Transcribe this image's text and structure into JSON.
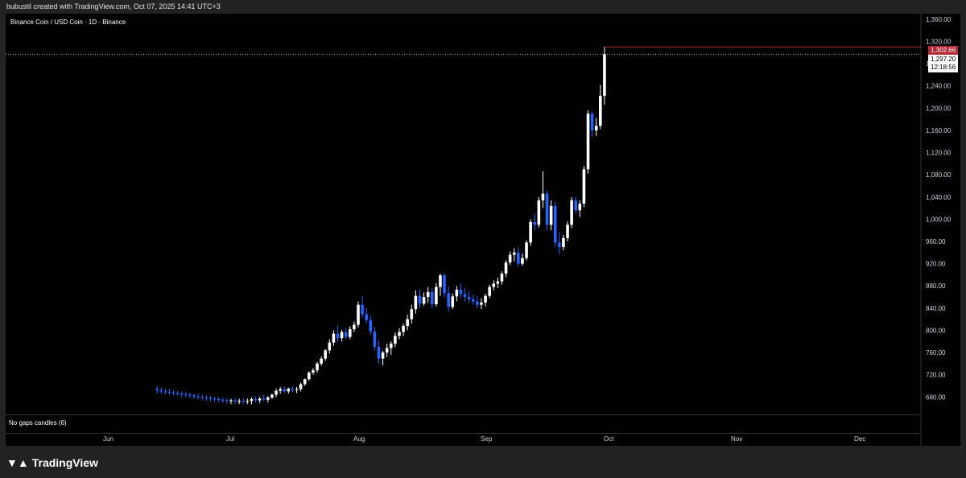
{
  "header": {
    "created_by": "bubustil created with TradingView.com, Oct 07, 2025 14:41 UTC+3"
  },
  "symbol": {
    "title": "Binance Coin / USD Coin · 1D · Binance"
  },
  "indicator": {
    "label": "No gaps candles (6)"
  },
  "price_tags": {
    "high": "1,302.66",
    "last": "1,297.20",
    "countdown": "12:18:56"
  },
  "footer": {
    "brand": "TradingView"
  },
  "colors": {
    "up": "#ffffff",
    "down": "#2962ff",
    "background": "#000000",
    "high_line": "#b22833"
  },
  "chart_data": {
    "type": "candlestick",
    "title": "Binance Coin / USD Coin · 1D · Binance",
    "ylim": [
      650,
      1370
    ],
    "y_ticks": [
      680,
      720,
      760,
      800,
      840,
      880,
      920,
      960,
      1000,
      1040,
      1080,
      1120,
      1160,
      1200,
      1240,
      1280,
      1320,
      1360
    ],
    "y_tick_labels": [
      "680.00",
      "720.00",
      "760.00",
      "800.00",
      "840.00",
      "880.00",
      "920.00",
      "960.00",
      "1,000.00",
      "1,040.00",
      "1,080.00",
      "1,120.00",
      "1,160.00",
      "1,200.00",
      "1,240.00",
      "1,280.00",
      "1,320.00",
      "1,360.00"
    ],
    "x_months": [
      "Jun",
      "Jul",
      "Aug",
      "Sep",
      "Oct",
      "Nov",
      "Dec"
    ],
    "x_month_days": [
      31,
      61,
      92,
      123,
      153,
      184,
      214
    ],
    "candles": [
      {
        "d": 43,
        "o": 694,
        "h": 700,
        "l": 686,
        "c": 692
      },
      {
        "d": 44,
        "o": 692,
        "h": 697,
        "l": 686,
        "c": 690
      },
      {
        "d": 45,
        "o": 690,
        "h": 695,
        "l": 685,
        "c": 689
      },
      {
        "d": 46,
        "o": 689,
        "h": 694,
        "l": 684,
        "c": 688
      },
      {
        "d": 47,
        "o": 688,
        "h": 692,
        "l": 683,
        "c": 687
      },
      {
        "d": 48,
        "o": 687,
        "h": 691,
        "l": 682,
        "c": 686
      },
      {
        "d": 49,
        "o": 686,
        "h": 690,
        "l": 680,
        "c": 685
      },
      {
        "d": 50,
        "o": 685,
        "h": 689,
        "l": 679,
        "c": 684
      },
      {
        "d": 51,
        "o": 684,
        "h": 688,
        "l": 678,
        "c": 683
      },
      {
        "d": 52,
        "o": 683,
        "h": 686,
        "l": 676,
        "c": 681
      },
      {
        "d": 53,
        "o": 681,
        "h": 685,
        "l": 675,
        "c": 680
      },
      {
        "d": 54,
        "o": 680,
        "h": 684,
        "l": 674,
        "c": 679
      },
      {
        "d": 55,
        "o": 679,
        "h": 683,
        "l": 673,
        "c": 678
      },
      {
        "d": 56,
        "o": 678,
        "h": 682,
        "l": 672,
        "c": 677
      },
      {
        "d": 57,
        "o": 677,
        "h": 680,
        "l": 671,
        "c": 676
      },
      {
        "d": 58,
        "o": 676,
        "h": 680,
        "l": 670,
        "c": 675
      },
      {
        "d": 59,
        "o": 675,
        "h": 679,
        "l": 669,
        "c": 674
      },
      {
        "d": 60,
        "o": 674,
        "h": 678,
        "l": 668,
        "c": 673
      },
      {
        "d": 61,
        "o": 673,
        "h": 677,
        "l": 667,
        "c": 674
      },
      {
        "d": 62,
        "o": 674,
        "h": 678,
        "l": 668,
        "c": 672
      },
      {
        "d": 63,
        "o": 672,
        "h": 677,
        "l": 667,
        "c": 673
      },
      {
        "d": 64,
        "o": 673,
        "h": 678,
        "l": 668,
        "c": 672
      },
      {
        "d": 65,
        "o": 672,
        "h": 677,
        "l": 667,
        "c": 673
      },
      {
        "d": 66,
        "o": 673,
        "h": 679,
        "l": 667,
        "c": 676
      },
      {
        "d": 67,
        "o": 676,
        "h": 681,
        "l": 670,
        "c": 674
      },
      {
        "d": 68,
        "o": 674,
        "h": 680,
        "l": 669,
        "c": 677
      },
      {
        "d": 69,
        "o": 677,
        "h": 684,
        "l": 672,
        "c": 675
      },
      {
        "d": 70,
        "o": 675,
        "h": 682,
        "l": 670,
        "c": 679
      },
      {
        "d": 71,
        "o": 679,
        "h": 686,
        "l": 676,
        "c": 684
      },
      {
        "d": 72,
        "o": 684,
        "h": 695,
        "l": 680,
        "c": 691
      },
      {
        "d": 73,
        "o": 691,
        "h": 698,
        "l": 686,
        "c": 694
      },
      {
        "d": 74,
        "o": 694,
        "h": 699,
        "l": 688,
        "c": 690
      },
      {
        "d": 75,
        "o": 690,
        "h": 697,
        "l": 686,
        "c": 695
      },
      {
        "d": 76,
        "o": 695,
        "h": 700,
        "l": 689,
        "c": 693
      },
      {
        "d": 77,
        "o": 693,
        "h": 698,
        "l": 687,
        "c": 694
      },
      {
        "d": 78,
        "o": 694,
        "h": 706,
        "l": 690,
        "c": 703
      },
      {
        "d": 79,
        "o": 703,
        "h": 713,
        "l": 700,
        "c": 712
      },
      {
        "d": 80,
        "o": 712,
        "h": 726,
        "l": 709,
        "c": 724
      },
      {
        "d": 81,
        "o": 724,
        "h": 732,
        "l": 720,
        "c": 728
      },
      {
        "d": 82,
        "o": 728,
        "h": 743,
        "l": 724,
        "c": 740
      },
      {
        "d": 83,
        "o": 740,
        "h": 753,
        "l": 736,
        "c": 749
      },
      {
        "d": 84,
        "o": 749,
        "h": 766,
        "l": 745,
        "c": 764
      },
      {
        "d": 85,
        "o": 764,
        "h": 784,
        "l": 758,
        "c": 778
      },
      {
        "d": 86,
        "o": 778,
        "h": 800,
        "l": 772,
        "c": 794
      },
      {
        "d": 87,
        "o": 794,
        "h": 808,
        "l": 779,
        "c": 786
      },
      {
        "d": 88,
        "o": 786,
        "h": 801,
        "l": 780,
        "c": 797
      },
      {
        "d": 89,
        "o": 797,
        "h": 804,
        "l": 784,
        "c": 788
      },
      {
        "d": 90,
        "o": 788,
        "h": 807,
        "l": 784,
        "c": 802
      },
      {
        "d": 91,
        "o": 802,
        "h": 816,
        "l": 797,
        "c": 810
      },
      {
        "d": 92,
        "o": 810,
        "h": 852,
        "l": 805,
        "c": 846
      },
      {
        "d": 93,
        "o": 846,
        "h": 862,
        "l": 823,
        "c": 829
      },
      {
        "d": 94,
        "o": 829,
        "h": 840,
        "l": 812,
        "c": 818
      },
      {
        "d": 95,
        "o": 818,
        "h": 826,
        "l": 792,
        "c": 798
      },
      {
        "d": 96,
        "o": 798,
        "h": 806,
        "l": 764,
        "c": 770
      },
      {
        "d": 97,
        "o": 770,
        "h": 781,
        "l": 740,
        "c": 749
      },
      {
        "d": 98,
        "o": 749,
        "h": 763,
        "l": 737,
        "c": 760
      },
      {
        "d": 99,
        "o": 760,
        "h": 776,
        "l": 752,
        "c": 768
      },
      {
        "d": 100,
        "o": 768,
        "h": 780,
        "l": 756,
        "c": 776
      },
      {
        "d": 101,
        "o": 776,
        "h": 796,
        "l": 770,
        "c": 790
      },
      {
        "d": 102,
        "o": 790,
        "h": 804,
        "l": 784,
        "c": 797
      },
      {
        "d": 103,
        "o": 797,
        "h": 812,
        "l": 790,
        "c": 808
      },
      {
        "d": 104,
        "o": 808,
        "h": 828,
        "l": 800,
        "c": 820
      },
      {
        "d": 105,
        "o": 820,
        "h": 846,
        "l": 812,
        "c": 838
      },
      {
        "d": 106,
        "o": 838,
        "h": 872,
        "l": 830,
        "c": 862
      },
      {
        "d": 107,
        "o": 862,
        "h": 874,
        "l": 840,
        "c": 848
      },
      {
        "d": 108,
        "o": 848,
        "h": 868,
        "l": 844,
        "c": 860
      },
      {
        "d": 109,
        "o": 860,
        "h": 878,
        "l": 850,
        "c": 869
      },
      {
        "d": 110,
        "o": 869,
        "h": 876,
        "l": 840,
        "c": 847
      },
      {
        "d": 111,
        "o": 847,
        "h": 885,
        "l": 843,
        "c": 878
      },
      {
        "d": 112,
        "o": 878,
        "h": 902,
        "l": 862,
        "c": 899
      },
      {
        "d": 113,
        "o": 899,
        "h": 903,
        "l": 859,
        "c": 867
      },
      {
        "d": 114,
        "o": 867,
        "h": 879,
        "l": 834,
        "c": 842
      },
      {
        "d": 115,
        "o": 842,
        "h": 866,
        "l": 838,
        "c": 861
      },
      {
        "d": 116,
        "o": 861,
        "h": 880,
        "l": 852,
        "c": 873
      },
      {
        "d": 117,
        "o": 873,
        "h": 884,
        "l": 859,
        "c": 865
      },
      {
        "d": 118,
        "o": 865,
        "h": 876,
        "l": 852,
        "c": 860
      },
      {
        "d": 119,
        "o": 860,
        "h": 870,
        "l": 850,
        "c": 856
      },
      {
        "d": 120,
        "o": 856,
        "h": 864,
        "l": 846,
        "c": 852
      },
      {
        "d": 121,
        "o": 852,
        "h": 862,
        "l": 840,
        "c": 846
      },
      {
        "d": 122,
        "o": 846,
        "h": 858,
        "l": 838,
        "c": 850
      },
      {
        "d": 123,
        "o": 850,
        "h": 866,
        "l": 843,
        "c": 862
      },
      {
        "d": 124,
        "o": 862,
        "h": 882,
        "l": 858,
        "c": 878
      },
      {
        "d": 125,
        "o": 878,
        "h": 890,
        "l": 872,
        "c": 884
      },
      {
        "d": 126,
        "o": 884,
        "h": 895,
        "l": 876,
        "c": 888
      },
      {
        "d": 127,
        "o": 888,
        "h": 906,
        "l": 882,
        "c": 902
      },
      {
        "d": 128,
        "o": 902,
        "h": 926,
        "l": 896,
        "c": 922
      },
      {
        "d": 129,
        "o": 922,
        "h": 942,
        "l": 918,
        "c": 936
      },
      {
        "d": 130,
        "o": 936,
        "h": 948,
        "l": 924,
        "c": 940
      },
      {
        "d": 131,
        "o": 940,
        "h": 950,
        "l": 914,
        "c": 920
      },
      {
        "d": 132,
        "o": 920,
        "h": 938,
        "l": 916,
        "c": 930
      },
      {
        "d": 133,
        "o": 930,
        "h": 962,
        "l": 926,
        "c": 958
      },
      {
        "d": 134,
        "o": 958,
        "h": 1000,
        "l": 952,
        "c": 995
      },
      {
        "d": 135,
        "o": 995,
        "h": 1010,
        "l": 980,
        "c": 990
      },
      {
        "d": 136,
        "o": 990,
        "h": 1040,
        "l": 985,
        "c": 1034
      },
      {
        "d": 137,
        "o": 1034,
        "h": 1086,
        "l": 1020,
        "c": 1046
      },
      {
        "d": 138,
        "o": 1046,
        "h": 1052,
        "l": 980,
        "c": 990
      },
      {
        "d": 139,
        "o": 990,
        "h": 1034,
        "l": 980,
        "c": 1024
      },
      {
        "d": 140,
        "o": 1024,
        "h": 1032,
        "l": 950,
        "c": 958
      },
      {
        "d": 141,
        "o": 958,
        "h": 976,
        "l": 936,
        "c": 950
      },
      {
        "d": 142,
        "o": 950,
        "h": 972,
        "l": 944,
        "c": 966
      },
      {
        "d": 143,
        "o": 966,
        "h": 996,
        "l": 960,
        "c": 990
      },
      {
        "d": 144,
        "o": 990,
        "h": 1040,
        "l": 984,
        "c": 1034
      },
      {
        "d": 145,
        "o": 1034,
        "h": 1040,
        "l": 1010,
        "c": 1016
      },
      {
        "d": 146,
        "o": 1016,
        "h": 1034,
        "l": 1004,
        "c": 1028
      },
      {
        "d": 147,
        "o": 1028,
        "h": 1096,
        "l": 1022,
        "c": 1090
      },
      {
        "d": 148,
        "o": 1090,
        "h": 1196,
        "l": 1082,
        "c": 1190
      },
      {
        "d": 149,
        "o": 1190,
        "h": 1194,
        "l": 1148,
        "c": 1160
      },
      {
        "d": 150,
        "o": 1160,
        "h": 1182,
        "l": 1150,
        "c": 1168
      },
      {
        "d": 151,
        "o": 1168,
        "h": 1242,
        "l": 1162,
        "c": 1222
      },
      {
        "d": 152,
        "o": 1222,
        "h": 1310,
        "l": 1206,
        "c": 1297
      }
    ]
  }
}
